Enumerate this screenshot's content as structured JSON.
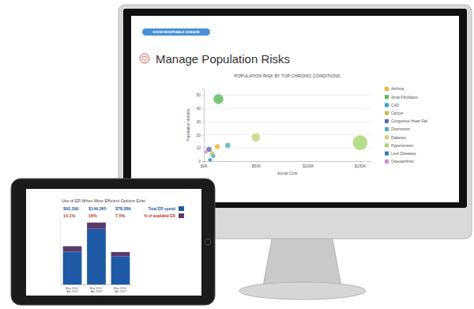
{
  "page": {
    "heading": "Manage Population Risks",
    "button": "SHOW MODIFIABLE DISEASE"
  },
  "chart_data": [
    {
      "type": "scatter",
      "title": "POPULATION RISK BY TOP CHRONIC CONDITIONS",
      "x_label": "Actual Cost",
      "y_label": "Population Volume",
      "xlim": [
        0,
        160000
      ],
      "xticks": [
        {
          "value": 0,
          "label": "$0K"
        },
        {
          "value": 50000,
          "label": "$50K"
        },
        {
          "value": 100000,
          "label": "$100K"
        },
        {
          "value": 150000,
          "label": "$150K"
        }
      ],
      "ylim": [
        0,
        55
      ],
      "yticks": [
        0,
        10,
        20,
        30,
        40,
        50
      ],
      "grid": true,
      "legend": "right",
      "marker": "circle",
      "series": [
        {
          "name": "Asthma",
          "color": "#f0b43c",
          "x": [
            13000
          ],
          "values": [
            11
          ],
          "size": [
            9
          ]
        },
        {
          "name": "Atrial Fibrillation",
          "color": "#5cb85c",
          "x": [
            14000
          ],
          "values": [
            47
          ],
          "size": [
            36
          ]
        },
        {
          "name": "CAD",
          "color": "#29a8d8",
          "x": [
            9000
          ],
          "values": [
            4
          ],
          "size": [
            6
          ]
        },
        {
          "name": "Cancer",
          "color": "#c9b94d",
          "x": [
            8000
          ],
          "values": [
            6
          ],
          "size": [
            6
          ]
        },
        {
          "name": "Congestive Heart Fail",
          "color": "#5b68b5",
          "x": [
            5000
          ],
          "values": [
            9
          ],
          "size": [
            9
          ]
        },
        {
          "name": "Depression",
          "color": "#46b3b8",
          "x": [
            23000
          ],
          "values": [
            12
          ],
          "size": [
            9
          ]
        },
        {
          "name": "Diabetes",
          "color": "#c9d07a",
          "x": [
            50000
          ],
          "values": [
            18
          ],
          "size": [
            25
          ]
        },
        {
          "name": "Hypertension",
          "color": "#a5d46f",
          "x": [
            150000
          ],
          "values": [
            14
          ],
          "size": [
            81
          ]
        },
        {
          "name": "Liver Diseases",
          "color": "#2f7db8",
          "x": [
            6000
          ],
          "values": [
            1
          ],
          "size": [
            4
          ]
        },
        {
          "name": "Osteoarthritis",
          "color": "#cf8fd9",
          "x": [
            2000
          ],
          "values": [
            7
          ],
          "size": [
            4
          ]
        }
      ]
    },
    {
      "type": "bar",
      "stacked": true,
      "title": "Use of ER When More Efficient Options Exist",
      "categories": [
        "May 2014-Apr 2015",
        "May 2015-Apr 2016",
        "May 2016-Apr 2017"
      ],
      "ylim": [
        0,
        160000
      ],
      "tick_labels": "x",
      "legend": "upper right",
      "spend_labels": [
        "$92,290",
        "$149,365",
        "$78,289"
      ],
      "share_labels": [
        "14.1%",
        "16%",
        "7.5%"
      ],
      "series": [
        {
          "name": "Total ER spend",
          "color": "#1f5aa6",
          "values": [
            79300,
            134000,
            68000
          ]
        },
        {
          "name": "% of available ER",
          "color": "#5b3a6b",
          "values": [
            13000,
            15300,
            10300
          ]
        }
      ]
    }
  ]
}
